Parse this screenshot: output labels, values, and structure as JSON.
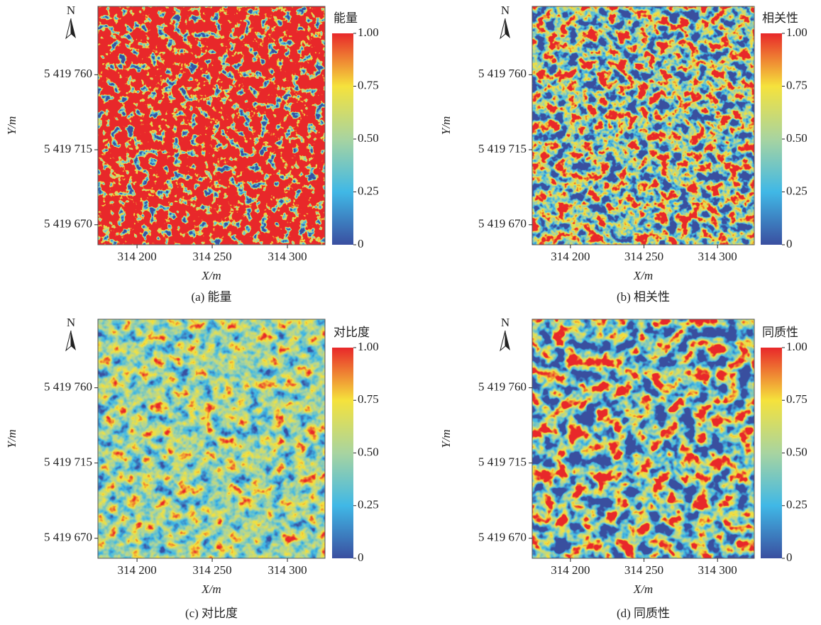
{
  "chart_data": [
    {
      "type": "heatmap",
      "title": "(a) 能量",
      "colorbar_title": "能量",
      "north_label": "N",
      "x_label": "X/m",
      "y_label": "Y/m",
      "xlim": [
        314174,
        314325
      ],
      "ylim": [
        5419658,
        5419801
      ],
      "xticks": [
        {
          "value": 314200,
          "label": "314 200"
        },
        {
          "value": 314250,
          "label": "314 250"
        },
        {
          "value": 314300,
          "label": "314 300"
        }
      ],
      "yticks": [
        {
          "value": 5419670,
          "label": "5 419 670"
        },
        {
          "value": 5419715,
          "label": "5 419 715"
        },
        {
          "value": 5419760,
          "label": "5 419 760"
        }
      ],
      "clim": [
        0,
        1
      ],
      "cticks": [
        0,
        0.25,
        {
          "value": 0.5,
          "label": "0.50"
        },
        0.75,
        {
          "value": 1,
          "label": "1.00"
        }
      ],
      "colorscale": [
        "#3a4fa0",
        "#40b8e6",
        "#a8d4a0",
        "#f5e23c",
        "#e8282a"
      ]
    },
    {
      "type": "heatmap",
      "title": "(b) 相关性",
      "colorbar_title": "相关性",
      "north_label": "N",
      "x_label": "X/m",
      "y_label": "Y/m",
      "xlim": [
        314174,
        314325
      ],
      "ylim": [
        5419658,
        5419801
      ],
      "xticks": [
        {
          "value": 314200,
          "label": "314 200"
        },
        {
          "value": 314250,
          "label": "314 250"
        },
        {
          "value": 314300,
          "label": "314 300"
        }
      ],
      "yticks": [
        {
          "value": 5419670,
          "label": "5 419 670"
        },
        {
          "value": 5419715,
          "label": "5 419 715"
        },
        {
          "value": 5419760,
          "label": "5 419 760"
        }
      ],
      "clim": [
        0,
        1
      ],
      "cticks": [
        0,
        0.25,
        {
          "value": 0.5,
          "label": "0.50"
        },
        0.75,
        {
          "value": 1,
          "label": "1.00"
        }
      ],
      "colorscale": [
        "#3a4fa0",
        "#40b8e6",
        "#a8d4a0",
        "#f5e23c",
        "#e8282a"
      ]
    },
    {
      "type": "heatmap",
      "title": "(c) 对比度",
      "colorbar_title": "对比度",
      "north_label": "N",
      "x_label": "X/m",
      "y_label": "Y/m",
      "xlim": [
        314174,
        314325
      ],
      "ylim": [
        5419658,
        5419801
      ],
      "xticks": [
        {
          "value": 314200,
          "label": "314 200"
        },
        {
          "value": 314250,
          "label": "314 250"
        },
        {
          "value": 314300,
          "label": "314 300"
        }
      ],
      "yticks": [
        {
          "value": 5419670,
          "label": "5 419 670"
        },
        {
          "value": 5419715,
          "label": "5 419 715"
        },
        {
          "value": 5419760,
          "label": "5 419 760"
        }
      ],
      "clim": [
        0,
        1
      ],
      "cticks": [
        0,
        0.25,
        {
          "value": 0.5,
          "label": "0.50"
        },
        0.75,
        {
          "value": 1,
          "label": "1.00"
        }
      ],
      "colorscale": [
        "#3a4fa0",
        "#40b8e6",
        "#a8d4a0",
        "#f5e23c",
        "#e8282a"
      ]
    },
    {
      "type": "heatmap",
      "title": "(d) 同质性",
      "colorbar_title": "同质性",
      "north_label": "N",
      "x_label": "X/m",
      "y_label": "Y/m",
      "xlim": [
        314174,
        314325
      ],
      "ylim": [
        5419658,
        5419801
      ],
      "xticks": [
        {
          "value": 314200,
          "label": "314 200"
        },
        {
          "value": 314250,
          "label": "314 250"
        },
        {
          "value": 314300,
          "label": "314 300"
        }
      ],
      "yticks": [
        {
          "value": 5419670,
          "label": "5 419 670"
        },
        {
          "value": 5419715,
          "label": "5 419 715"
        },
        {
          "value": 5419760,
          "label": "5 419 760"
        }
      ],
      "clim": [
        0,
        1
      ],
      "cticks": [
        0,
        0.25,
        {
          "value": 0.5,
          "label": "0.50"
        },
        0.75,
        {
          "value": 1,
          "label": "1.00"
        }
      ],
      "colorscale": [
        "#3a4fa0",
        "#40b8e6",
        "#a8d4a0",
        "#f5e23c",
        "#e8282a"
      ]
    }
  ]
}
